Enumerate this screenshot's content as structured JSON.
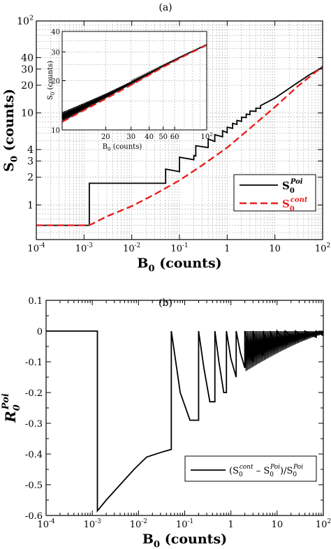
{
  "panels": {
    "a_label": "(a)",
    "b_label": "(b)"
  },
  "chart_data": [
    {
      "id": "panel-a",
      "type": "line",
      "xscale": "log",
      "yscale": "log",
      "xlim": [
        0.0001,
        100
      ],
      "ylim": [
        0.42,
        100
      ],
      "xlabel": "B0 (counts)",
      "ylabel": "S0 (counts)",
      "xticks": [
        {
          "v": 0.0001,
          "base": "10",
          "exp": "-4"
        },
        {
          "v": 0.001,
          "base": "10",
          "exp": "-3"
        },
        {
          "v": 0.01,
          "base": "10",
          "exp": "-2"
        },
        {
          "v": 0.1,
          "base": "10",
          "exp": "-1"
        },
        {
          "v": 1,
          "base": "1",
          "exp": ""
        },
        {
          "v": 10,
          "base": "10",
          "exp": ""
        },
        {
          "v": 100,
          "base": "10",
          "exp": "2"
        }
      ],
      "yticks": [
        {
          "v": 1,
          "base": "1",
          "exp": ""
        },
        {
          "v": 2,
          "base": "2",
          "exp": ""
        },
        {
          "v": 3,
          "base": "3",
          "exp": ""
        },
        {
          "v": 4,
          "base": "4",
          "exp": ""
        },
        {
          "v": 10,
          "base": "10",
          "exp": ""
        },
        {
          "v": 20,
          "base": "20",
          "exp": ""
        },
        {
          "v": 30,
          "base": "30",
          "exp": ""
        },
        {
          "v": 40,
          "base": "40",
          "exp": ""
        },
        {
          "v": 100,
          "base": "10",
          "exp": "2"
        }
      ],
      "grid": true,
      "legend": {
        "position": "right-middle"
      },
      "series": [
        {
          "name": "S0^Poi",
          "label_base": "S",
          "label_sub": "0",
          "label_sup": "Poi",
          "color": "#000000",
          "dash": "solid",
          "x": [
            0.0001,
            0.00129,
            0.00129,
            0.0513,
            0.0513,
            0.0513,
            0.1,
            0.1,
            0.2,
            0.2,
            0.22,
            0.22,
            0.4,
            0.4,
            0.55,
            0.55,
            0.8,
            0.8,
            1.0,
            1.0,
            1.3,
            1.3,
            1.6,
            1.6,
            2.0,
            2.0,
            2.5,
            2.5,
            3.0,
            3.0,
            4.0,
            4.0,
            5.0,
            5.0,
            10,
            20,
            50,
            100
          ],
          "y": [
            0.6,
            0.6,
            1.72,
            1.72,
            1.72,
            2.45,
            2.3,
            3.3,
            3.1,
            3.45,
            3.4,
            4.4,
            4.2,
            5.2,
            4.9,
            5.8,
            5.5,
            6.4,
            6.1,
            7.0,
            6.8,
            7.7,
            7.5,
            8.3,
            8.1,
            9.0,
            8.9,
            9.7,
            9.6,
            10.5,
            10.4,
            11.3,
            11.2,
            12.0,
            14.5,
            18.5,
            25.5,
            31.5
          ]
        },
        {
          "name": "S0^cont",
          "label_base": "S",
          "label_sub": "0",
          "label_sup": "cont",
          "color": "#e8201e",
          "dash": "dashed",
          "x": [
            0.0001,
            0.00129,
            0.003,
            0.01,
            0.03,
            0.1,
            0.3,
            1,
            3,
            10,
            30,
            100
          ],
          "y": [
            0.6,
            0.6,
            0.75,
            0.97,
            1.3,
            1.85,
            2.7,
            4.2,
            6.8,
            11.6,
            19.5,
            32
          ]
        }
      ],
      "inset": {
        "type": "line",
        "xscale": "log",
        "yscale": "log",
        "xlim": [
          10,
          100
        ],
        "ylim": [
          10,
          40
        ],
        "xlabel": "B0 (counts)",
        "ylabel": "S0 (counts)",
        "xticks": [
          {
            "v": 20,
            "base": "20",
            "exp": ""
          },
          {
            "v": 30,
            "base": "30",
            "exp": ""
          },
          {
            "v": 40,
            "base": "40",
            "exp": ""
          },
          {
            "v": 50,
            "base": "50",
            "exp": ""
          },
          {
            "v": 60,
            "base": "60",
            "exp": ""
          },
          {
            "v": 100,
            "base": "10",
            "exp": "2"
          }
        ],
        "yticks": [
          {
            "v": 10,
            "base": "10",
            "exp": ""
          },
          {
            "v": 20,
            "base": "20",
            "exp": ""
          },
          {
            "v": 30,
            "base": "30",
            "exp": ""
          },
          {
            "v": 40,
            "base": "40",
            "exp": ""
          }
        ],
        "grid": true,
        "series": [
          {
            "name": "S0^Poi",
            "color": "#000000",
            "dash": "solid",
            "x": [
              10,
              20,
              30,
              50,
              70,
              100
            ],
            "y": [
              11.8,
              16.0,
              19.3,
              24.6,
              28.6,
              33.2
            ],
            "sawtooth": true
          },
          {
            "name": "S0^cont",
            "color": "#e8201e",
            "dash": "dashed",
            "x": [
              10,
              20,
              30,
              50,
              70,
              100
            ],
            "y": [
              11.2,
              15.5,
              18.8,
              24.2,
              28.3,
              33.0
            ]
          }
        ]
      }
    },
    {
      "id": "panel-b",
      "type": "line",
      "xscale": "log",
      "yscale": "linear",
      "xlim": [
        0.0001,
        100
      ],
      "ylim": [
        -0.6,
        0.1
      ],
      "xlabel": "B0 (counts)",
      "ylabel": "R0^Poi",
      "xticks": [
        {
          "v": 0.0001,
          "base": "10",
          "exp": "-4"
        },
        {
          "v": 0.001,
          "base": "10",
          "exp": "-3"
        },
        {
          "v": 0.01,
          "base": "10",
          "exp": "-2"
        },
        {
          "v": 0.1,
          "base": "10",
          "exp": "-1"
        },
        {
          "v": 1,
          "base": "1",
          "exp": ""
        },
        {
          "v": 10,
          "base": "10",
          "exp": ""
        },
        {
          "v": 100,
          "base": "10",
          "exp": "2"
        }
      ],
      "yticks": [
        {
          "v": 0.1,
          "label": "0.1"
        },
        {
          "v": 0,
          "label": "0"
        },
        {
          "v": -0.1,
          "label": "-0.1"
        },
        {
          "v": -0.2,
          "label": "-0.2"
        },
        {
          "v": -0.3,
          "label": "-0.3"
        },
        {
          "v": -0.4,
          "label": "-0.4"
        },
        {
          "v": -0.5,
          "label": "-0.5"
        },
        {
          "v": -0.6,
          "label": "-0.6"
        }
      ],
      "grid": false,
      "legend": {
        "position": "bottom-right"
      },
      "series": [
        {
          "name": "(S0^cont - S0^Poi)/S0^Poi",
          "color": "#000000",
          "dash": "solid",
          "x": [
            0.0001,
            0.00129,
            0.00129,
            0.002,
            0.004,
            0.008,
            0.015,
            0.03,
            0.0513,
            0.0513,
            0.08,
            0.13,
            0.2,
            0.2,
            0.26,
            0.35,
            0.45,
            0.45,
            0.55,
            0.7,
            0.8,
            0.8,
            1.0,
            1.3,
            1.3,
            1.6,
            2.0,
            2.0,
            2.5,
            3.0,
            3.0,
            4.0,
            5.0,
            5.0,
            7.0,
            7.0,
            10,
            10,
            15,
            15,
            25,
            25,
            40,
            40,
            70,
            70,
            100
          ],
          "y": [
            0,
            0,
            -0.585,
            -0.55,
            -0.5,
            -0.45,
            -0.41,
            -0.395,
            -0.385,
            0,
            -0.2,
            -0.29,
            -0.29,
            0,
            -0.12,
            -0.23,
            -0.23,
            0,
            -0.1,
            -0.2,
            -0.2,
            0,
            -0.09,
            -0.15,
            0,
            -0.07,
            -0.12,
            0,
            -0.06,
            -0.1,
            0,
            -0.05,
            -0.08,
            0,
            -0.06,
            0,
            -0.05,
            0,
            -0.04,
            0,
            -0.03,
            0,
            -0.025,
            0,
            -0.02,
            0,
            -0.015
          ]
        }
      ]
    }
  ]
}
